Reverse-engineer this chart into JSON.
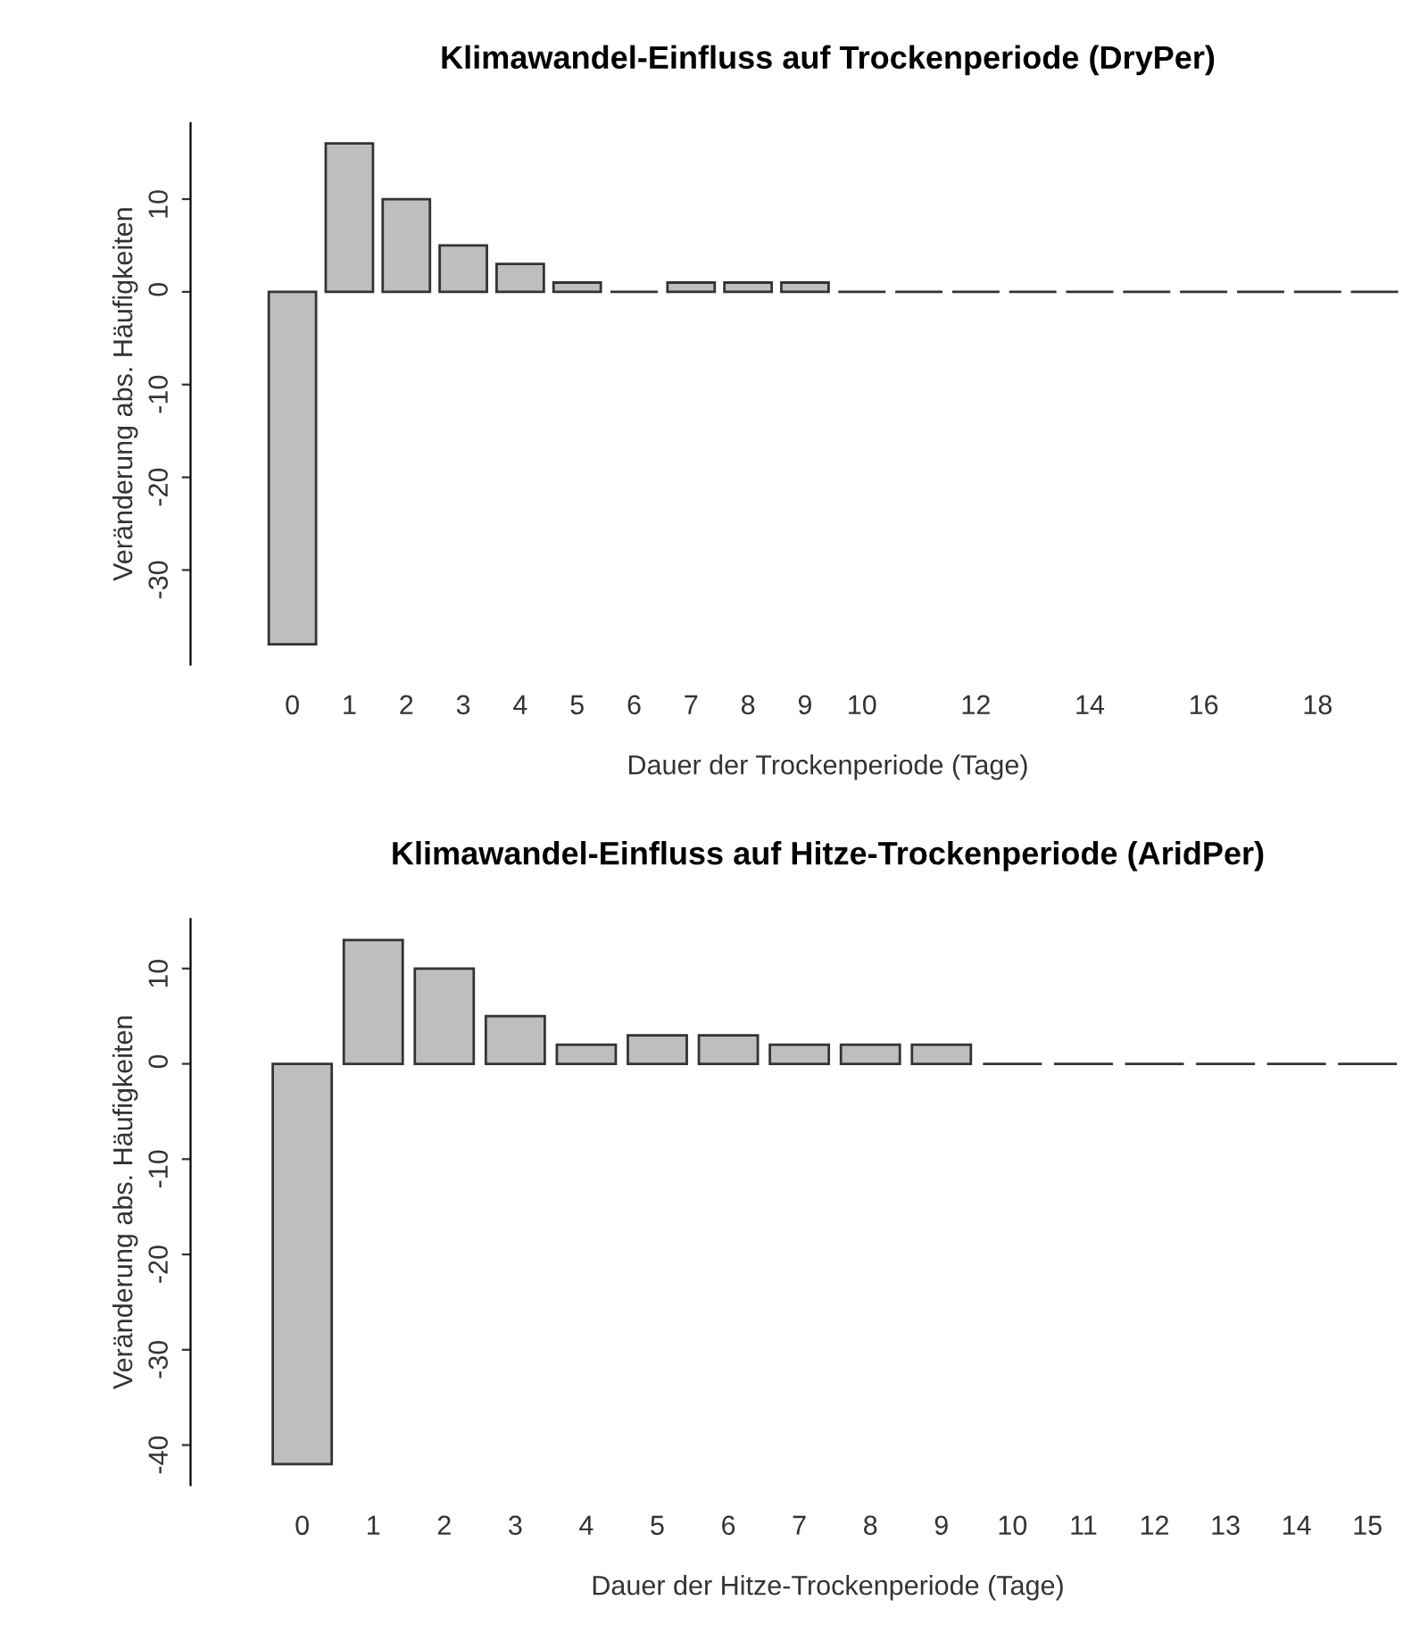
{
  "chart_data": [
    {
      "type": "bar",
      "title": "Klimawandel-Einfluss auf Trockenperiode (DryPer)",
      "xlabel": "Dauer der Trockenperiode (Tage)",
      "ylabel": "Veränderung abs. Häufigkeiten",
      "categories": [
        "0",
        "1",
        "2",
        "3",
        "4",
        "5",
        "6",
        "7",
        "8",
        "9",
        "10",
        null,
        "12",
        null,
        "14",
        null,
        "16",
        null,
        "18",
        null
      ],
      "values": [
        -38,
        16,
        10,
        5,
        3,
        1,
        0,
        1,
        1,
        1,
        0,
        0,
        0,
        0,
        0,
        0,
        0,
        0,
        0,
        0
      ],
      "colors": [
        "#bebebe",
        "#bebebe",
        "#bebebe",
        "#bebebe",
        "#bebebe",
        "#bebebe",
        "#333333",
        "#bebebe",
        "#bebebe",
        "#bebebe",
        "#333333",
        "#333333",
        "#333333",
        "#333333",
        "#333333",
        "#333333",
        "#333333",
        "#333333",
        "#333333",
        "#333333"
      ],
      "ylim": [
        -40.2,
        18.2
      ],
      "yticks": [
        -30,
        -20,
        -10,
        0,
        10
      ],
      "grid": false
    },
    {
      "type": "bar",
      "title": "Klimawandel-Einfluss auf Hitze-Trockenperiode (AridPer)",
      "xlabel": "Dauer der Hitze-Trockenperiode (Tage)",
      "ylabel": "Veränderung abs. Häufigkeiten",
      "categories": [
        "0",
        "1",
        "2",
        "3",
        "4",
        "5",
        "6",
        "7",
        "8",
        "9",
        "10",
        "11",
        "12",
        "13",
        "14",
        "15"
      ],
      "values": [
        -42,
        13,
        10,
        5,
        2,
        3,
        3,
        2,
        2,
        2,
        0,
        0,
        0,
        0,
        0,
        0
      ],
      "colors": [
        "#bebebe",
        "#bebebe",
        "#bebebe",
        "#bebebe",
        "#bebebe",
        "#bebebe",
        "#bebebe",
        "#bebebe",
        "#bebebe",
        "#bebebe",
        "#333333",
        "#333333",
        "#333333",
        "#333333",
        "#333333",
        "#333333"
      ],
      "ylim": [
        -44.2,
        15.2
      ],
      "yticks": [
        -40,
        -30,
        -20,
        -10,
        0,
        10
      ],
      "grid": false
    }
  ]
}
